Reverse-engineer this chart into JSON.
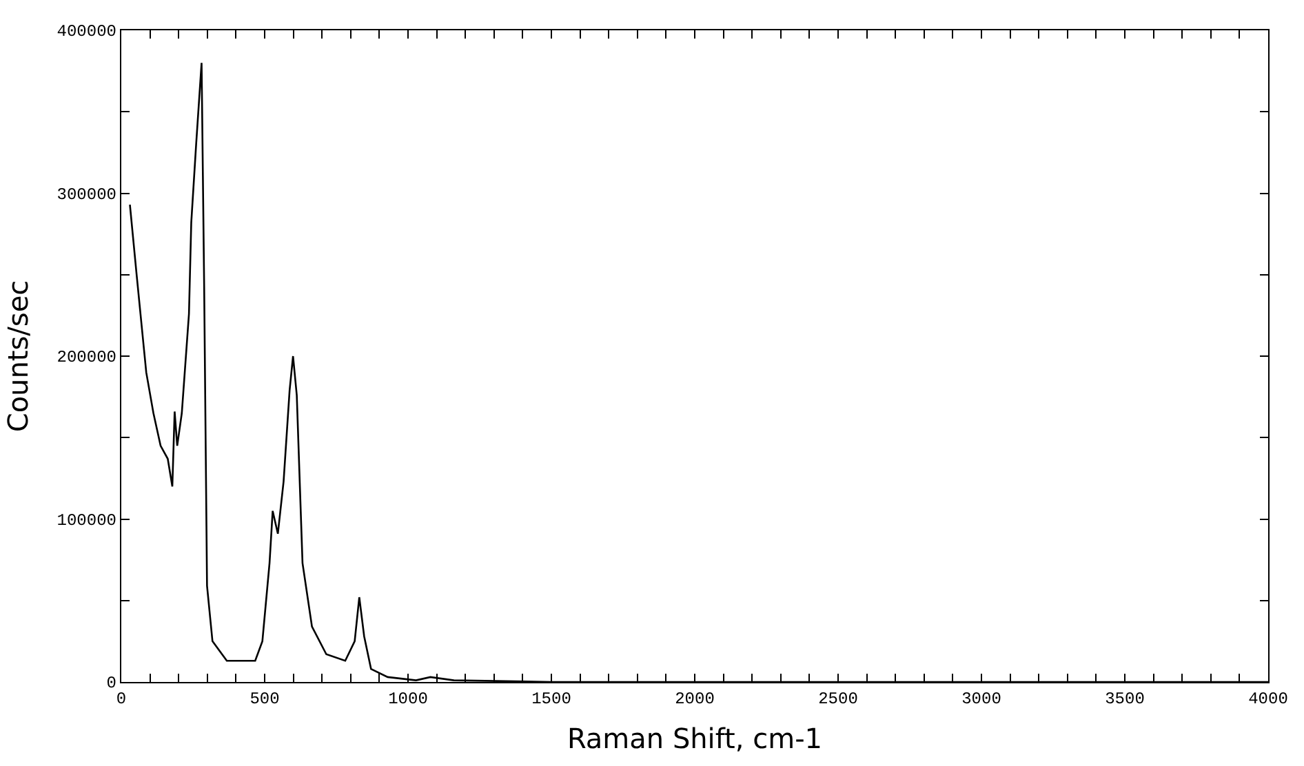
{
  "chart_data": {
    "type": "line",
    "xlabel": "Raman Shift, cm-1",
    "ylabel": "Counts/sec",
    "x": [
      30,
      54,
      87,
      112,
      137,
      162,
      178,
      186,
      195,
      211,
      236,
      244,
      261,
      280,
      289,
      299,
      318,
      368,
      417,
      467,
      492,
      517,
      528,
      546,
      566,
      587,
      599,
      612,
      632,
      665,
      715,
      781,
      814,
      830,
      847,
      871,
      929,
      1028,
      1078,
      1160,
      1500,
      2000,
      2500,
      3000,
      3500,
      4000
    ],
    "series": [
      {
        "color": "#000000",
        "values": [
          293000,
          249000,
          190000,
          165000,
          145000,
          137000,
          120000,
          166000,
          145000,
          165000,
          226000,
          282000,
          330000,
          380000,
          243000,
          59000,
          25000,
          13000,
          13000,
          13000,
          25000,
          73000,
          105000,
          91000,
          123000,
          179000,
          200000,
          176000,
          73000,
          34000,
          17000,
          13000,
          25000,
          52000,
          28000,
          8000,
          3000,
          1000,
          3000,
          1000,
          0,
          0,
          0,
          0,
          0,
          0
        ]
      }
    ],
    "xlim": [
      0,
      4000
    ],
    "ylim": [
      0,
      400000
    ],
    "xticks": [
      0,
      {
        "value": 100,
        "label": null
      },
      {
        "value": 200,
        "label": null
      },
      {
        "value": 300,
        "label": null
      },
      {
        "value": 400,
        "label": null
      },
      500,
      {
        "value": 600,
        "label": null
      },
      {
        "value": 700,
        "label": null
      },
      {
        "value": 800,
        "label": null
      },
      {
        "value": 900,
        "label": null
      },
      1000,
      {
        "value": 1100,
        "label": null
      },
      {
        "value": 1200,
        "label": null
      },
      {
        "value": 1300,
        "label": null
      },
      {
        "value": 1400,
        "label": null
      },
      1500,
      {
        "value": 1600,
        "label": null
      },
      {
        "value": 1700,
        "label": null
      },
      {
        "value": 1800,
        "label": null
      },
      {
        "value": 1900,
        "label": null
      },
      2000,
      {
        "value": 2100,
        "label": null
      },
      {
        "value": 2200,
        "label": null
      },
      {
        "value": 2300,
        "label": null
      },
      {
        "value": 2400,
        "label": null
      },
      2500,
      {
        "value": 2600,
        "label": null
      },
      {
        "value": 2700,
        "label": null
      },
      {
        "value": 2800,
        "label": null
      },
      {
        "value": 2900,
        "label": null
      },
      3000,
      {
        "value": 3100,
        "label": null
      },
      {
        "value": 3200,
        "label": null
      },
      {
        "value": 3300,
        "label": null
      },
      {
        "value": 3400,
        "label": null
      },
      3500,
      {
        "value": 3600,
        "label": null
      },
      {
        "value": 3700,
        "label": null
      },
      {
        "value": 3800,
        "label": null
      },
      {
        "value": 3900,
        "label": null
      },
      4000
    ],
    "yticks": [
      0,
      {
        "value": 50000,
        "label": null
      },
      100000,
      {
        "value": 150000,
        "label": null
      },
      200000,
      {
        "value": 250000,
        "label": null
      },
      300000,
      {
        "value": 350000,
        "label": null
      },
      400000
    ],
    "legend": false,
    "marker": "none",
    "line_style": "solid"
  }
}
